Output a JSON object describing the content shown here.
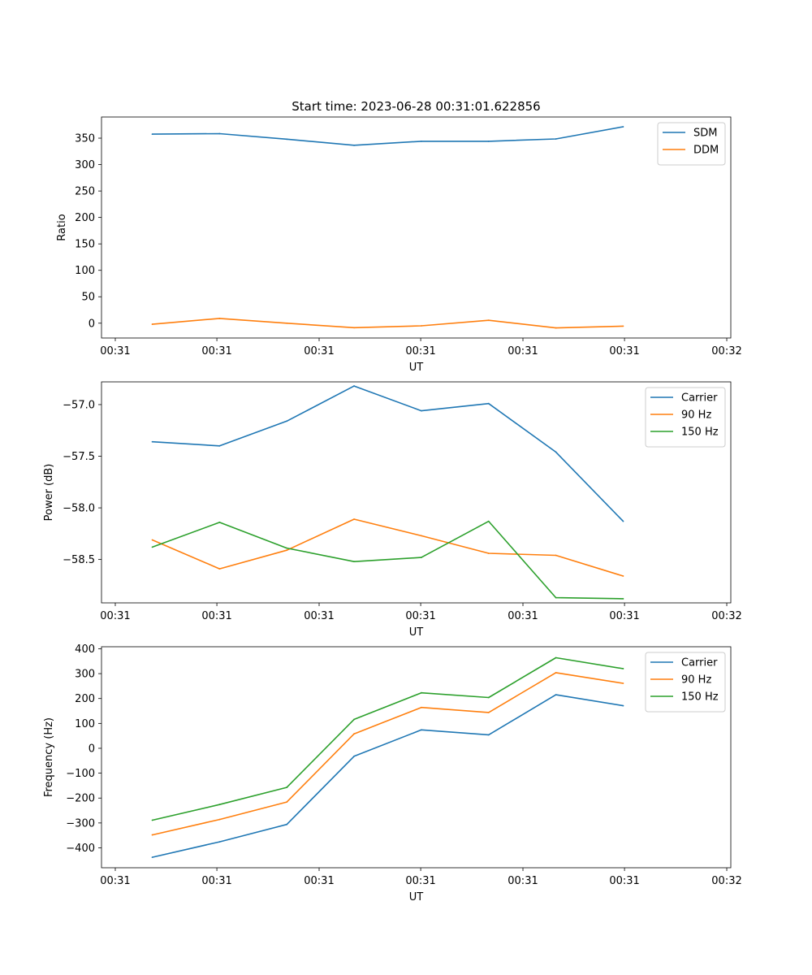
{
  "figure": {
    "title": "Start time: 2023-06-28 00:31:01.622856"
  },
  "chart_data": [
    {
      "type": "line",
      "title": "Start time: 2023-06-28 00:31:01.622856",
      "xlabel": "UT",
      "ylabel": "Ratio",
      "x": [
        1,
        2,
        3,
        4,
        5,
        6,
        7,
        8
      ],
      "xlim": [
        0.245,
        9.6
      ],
      "x_ticks": [
        0.45,
        1.96,
        3.48,
        4.99,
        6.51,
        8.02,
        9.54
      ],
      "x_tick_labels": [
        "00:31",
        "00:31",
        "00:31",
        "00:31",
        "00:31",
        "00:31",
        "00:32"
      ],
      "ylim": [
        -28,
        390
      ],
      "y_ticks": [
        0,
        50,
        100,
        150,
        200,
        250,
        300,
        350
      ],
      "y_tick_labels": [
        "0",
        "50",
        "100",
        "150",
        "200",
        "250",
        "300",
        "350"
      ],
      "legend_position": "top-right",
      "grid": false,
      "series": [
        {
          "name": "SDM",
          "color": "#1f77b4",
          "values": [
            357.5,
            358.5,
            348,
            336.5,
            344,
            344,
            348.5,
            371.5
          ]
        },
        {
          "name": "DDM",
          "color": "#ff7f0e",
          "values": [
            -2,
            9,
            0,
            -8.5,
            -5,
            5.5,
            -9,
            -5.5
          ]
        }
      ]
    },
    {
      "type": "line",
      "xlabel": "UT",
      "ylabel": "Power (dB)",
      "x": [
        1,
        2,
        3,
        4,
        5,
        6,
        7,
        8
      ],
      "xlim": [
        0.245,
        9.6
      ],
      "x_ticks": [
        0.45,
        1.96,
        3.48,
        4.99,
        6.51,
        8.02,
        9.54
      ],
      "x_tick_labels": [
        "00:31",
        "00:31",
        "00:31",
        "00:31",
        "00:31",
        "00:31",
        "00:32"
      ],
      "ylim": [
        -58.92,
        -56.78
      ],
      "y_ticks": [
        -58.5,
        -58.0,
        -57.5,
        -57.0
      ],
      "y_tick_labels": [
        "−58.5",
        "−58.0",
        "−57.5",
        "−57.0"
      ],
      "legend_position": "top-right",
      "grid": false,
      "series": [
        {
          "name": "Carrier",
          "color": "#1f77b4",
          "values": [
            -57.36,
            -57.4,
            -57.16,
            -56.82,
            -57.06,
            -56.99,
            -57.46,
            -58.13
          ]
        },
        {
          "name": "90 Hz",
          "color": "#ff7f0e",
          "values": [
            -58.31,
            -58.59,
            -58.41,
            -58.11,
            -58.27,
            -58.44,
            -58.46,
            -58.66
          ]
        },
        {
          "name": "150 Hz",
          "color": "#2ca02c",
          "values": [
            -58.38,
            -58.14,
            -58.39,
            -58.52,
            -58.48,
            -58.13,
            -58.87,
            -58.88
          ]
        }
      ]
    },
    {
      "type": "line",
      "xlabel": "UT",
      "ylabel": "Frequency (Hz)",
      "x": [
        1,
        2,
        3,
        4,
        5,
        6,
        7,
        8
      ],
      "xlim": [
        0.245,
        9.6
      ],
      "x_ticks": [
        0.45,
        1.96,
        3.48,
        4.99,
        6.51,
        8.02,
        9.54
      ],
      "x_tick_labels": [
        "00:31",
        "00:31",
        "00:31",
        "00:31",
        "00:31",
        "00:31",
        "00:32"
      ],
      "ylim": [
        -480,
        408
      ],
      "y_ticks": [
        -400,
        -300,
        -200,
        -100,
        0,
        100,
        200,
        300,
        400
      ],
      "y_tick_labels": [
        "−400",
        "−300",
        "−200",
        "−100",
        "0",
        "100",
        "200",
        "300",
        "400"
      ],
      "legend_position": "top-right",
      "grid": false,
      "series": [
        {
          "name": "Carrier",
          "color": "#1f77b4",
          "values": [
            -438,
            -376,
            -306,
            -32,
            74,
            54,
            215,
            171
          ]
        },
        {
          "name": "90 Hz",
          "color": "#ff7f0e",
          "values": [
            -348,
            -286,
            -216,
            58,
            164,
            144,
            304,
            261
          ]
        },
        {
          "name": "150 Hz",
          "color": "#2ca02c",
          "values": [
            -289,
            -226,
            -157,
            116,
            223,
            204,
            364,
            320
          ]
        }
      ]
    }
  ]
}
